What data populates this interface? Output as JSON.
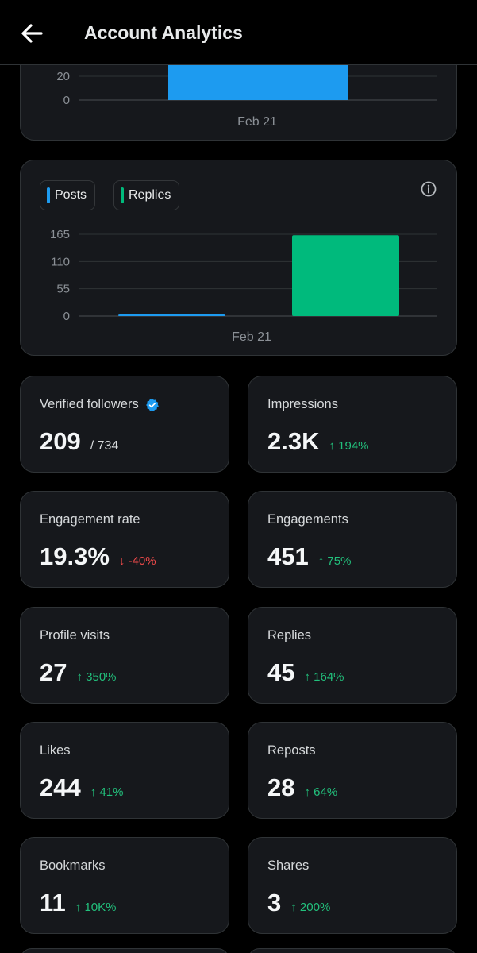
{
  "header": {
    "title": "Account Analytics",
    "back_icon": "arrow-left-icon"
  },
  "chart_top": {
    "y_ticks": [
      "20",
      "0"
    ],
    "x_label": "Feb 21",
    "bar_color": "#1d9bf0"
  },
  "chart_data": {
    "type": "bar",
    "categories": [
      "Feb 21"
    ],
    "series": [
      {
        "name": "Posts",
        "values": [
          1
        ],
        "color": "#1d9bf0"
      },
      {
        "name": "Replies",
        "values": [
          163
        ],
        "color": "#00ba7c"
      }
    ],
    "y_ticks": [
      0,
      55,
      110,
      165
    ],
    "ylim": [
      0,
      165
    ],
    "grid": true,
    "legend": [
      {
        "label": "Posts",
        "color": "#1d9bf0"
      },
      {
        "label": "Replies",
        "color": "#00ba7c"
      }
    ]
  },
  "stats": {
    "verified_followers": {
      "label": "Verified followers",
      "value": "209",
      "total": "/ 734"
    },
    "impressions": {
      "label": "Impressions",
      "value": "2.3K",
      "change": "↑ 194%"
    },
    "engagement_rate": {
      "label": "Engagement rate",
      "value": "19.3%",
      "change": "↓ -40%"
    },
    "engagements": {
      "label": "Engagements",
      "value": "451",
      "change": "↑ 75%"
    },
    "profile_visits": {
      "label": "Profile visits",
      "value": "27",
      "change": "↑ 350%"
    },
    "replies": {
      "label": "Replies",
      "value": "45",
      "change": "↑ 164%"
    },
    "likes": {
      "label": "Likes",
      "value": "244",
      "change": "↑ 41%"
    },
    "reposts": {
      "label": "Reposts",
      "value": "28",
      "change": "↑ 64%"
    },
    "bookmarks": {
      "label": "Bookmarks",
      "value": "11",
      "change": "↑ 10K%"
    },
    "shares": {
      "label": "Shares",
      "value": "3",
      "change": "↑ 200%"
    }
  },
  "colors": {
    "up": "#22c07c",
    "down": "#f04a4a",
    "verified": "#1d9bf0"
  }
}
